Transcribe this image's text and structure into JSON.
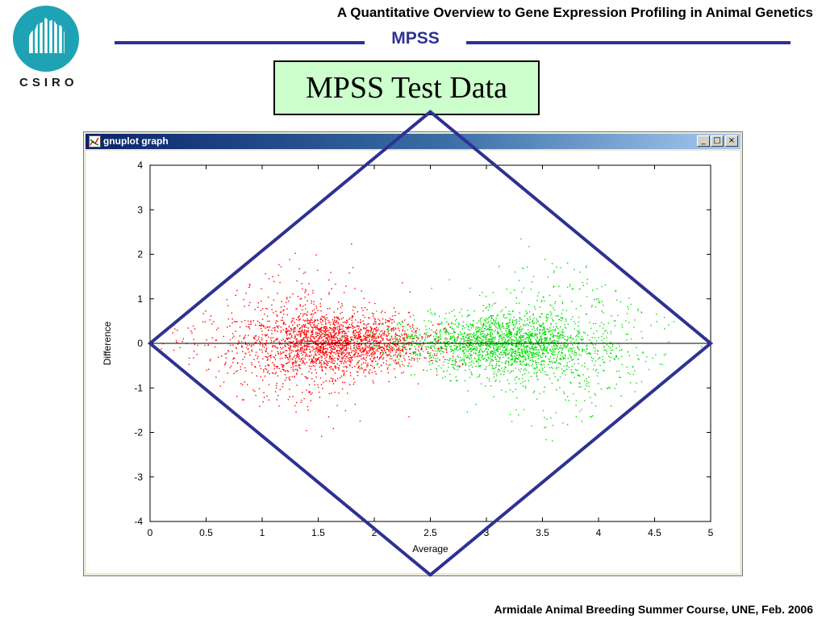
{
  "header": {
    "course_title": "A Quantitative Overview to Gene Expression Profiling in Animal Genetics",
    "section_title": "MPSS",
    "accent_color": "#2e3192"
  },
  "logo": {
    "text": "CSIRO",
    "color": "#1fa3b4"
  },
  "slide": {
    "title": "MPSS Test Data",
    "title_bg": "#ccffcc"
  },
  "window": {
    "title": "gnuplot graph",
    "buttons": {
      "minimize": "_",
      "maximize": "□",
      "close": "×"
    }
  },
  "chart_data": {
    "type": "scatter",
    "title": "",
    "xlabel": "Average",
    "ylabel": "Difference",
    "xlim": [
      0,
      5
    ],
    "ylim": [
      -4,
      4
    ],
    "x_ticks": [
      "0",
      "0.5",
      "1",
      "1.5",
      "2",
      "2.5",
      "3",
      "3.5",
      "4",
      "4.5",
      "5"
    ],
    "y_ticks": [
      "4",
      "3",
      "2",
      "1",
      "0",
      "-1",
      "-2",
      "-3",
      "-4"
    ],
    "zero_line": true,
    "grid": false,
    "series_colors": {
      "low": "#ff0000",
      "high": "#00dd00"
    },
    "clusters": [
      {
        "color": "#ff0000",
        "x_center": 1.6,
        "x_spread": 0.35,
        "y_spread": 0.35,
        "n": 1600
      },
      {
        "color": "#00dd00",
        "x_center": 3.2,
        "x_spread": 0.35,
        "y_spread": 0.35,
        "n": 1600
      },
      {
        "color": "#ff0000",
        "x_center": 1.2,
        "x_spread": 0.4,
        "y_spread": 0.9,
        "n": 500
      },
      {
        "color": "#00dd00",
        "x_center": 3.7,
        "x_spread": 0.4,
        "y_spread": 0.9,
        "n": 500
      },
      {
        "color": "#ff0000",
        "x_center": 2.1,
        "x_spread": 0.35,
        "y_spread": 0.25,
        "n": 350
      },
      {
        "color": "#00dd00",
        "x_center": 2.6,
        "x_spread": 0.35,
        "y_spread": 0.25,
        "n": 350
      }
    ],
    "overlay": {
      "shape": "diamond",
      "color": "#2e3192",
      "vertices": [
        [
          0,
          0
        ],
        [
          2.5,
          5.2
        ],
        [
          5,
          0
        ],
        [
          2.5,
          -5.2
        ]
      ]
    }
  },
  "footer": {
    "text": "Armidale Animal Breeding Summer Course, UNE, Feb. 2006"
  }
}
